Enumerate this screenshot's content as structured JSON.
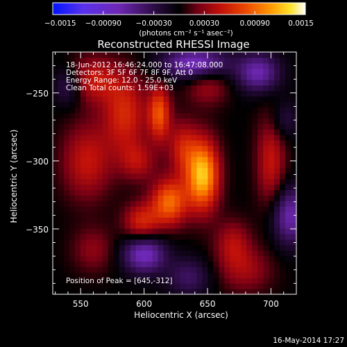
{
  "chart_data": {
    "type": "heatmap",
    "title": "Reconstructed RHESSI Image",
    "xlabel": "Heliocentric X (arcsec)",
    "ylabel": "Heliocentric Y (arcsec)",
    "xlim": [
      528,
      720
    ],
    "ylim": [
      -398,
      -220
    ],
    "x_ticks": [
      550,
      600,
      650,
      700
    ],
    "x_tick_labels": [
      "550",
      "600",
      "650",
      "700"
    ],
    "y_ticks": [
      -250,
      -300,
      -350
    ],
    "y_tick_labels": [
      "−250",
      "−300",
      "−350"
    ],
    "colorbar": {
      "range": [
        -0.0015,
        0.0015
      ],
      "tick_values": [
        -0.0015,
        -0.0009,
        -0.0003,
        0.0003,
        0.0009,
        0.0015
      ],
      "tick_labels": [
        "−0.0015",
        "−0.00090",
        "−0.00030",
        "0.00030",
        "0.00090",
        "0.0015"
      ],
      "unit_label": "(photons cm⁻² s⁻¹ asec⁻²)"
    },
    "annotations": [
      "18-Jun-2012 16:46:24.000 to 16:47:08.000",
      "Detectors: 3F 5F 6F 7F 8F 9F, Att 0",
      "Energy Range: 12.0 - 25.0 keV",
      "Clean    Total counts: 1.59E+03"
    ],
    "peak_label": "Position of Peak = [645,-312]",
    "peak": {
      "x": 645,
      "y": -312,
      "value": 0.0015
    },
    "sources": [
      {
        "x": 646,
        "y": -310,
        "value": 0.00125,
        "sx": 9,
        "sy": 18
      },
      {
        "x": 612,
        "y": -265,
        "value": 0.0008,
        "sx": 6,
        "sy": 14
      },
      {
        "x": 620,
        "y": -330,
        "value": 0.0009,
        "sx": 10,
        "sy": 12
      },
      {
        "x": 555,
        "y": -300,
        "value": 0.0005,
        "sx": 14,
        "sy": 20
      },
      {
        "x": 585,
        "y": -265,
        "value": 0.0006,
        "sx": 12,
        "sy": 20
      },
      {
        "x": 598,
        "y": -345,
        "value": 0.0006,
        "sx": 10,
        "sy": 10
      },
      {
        "x": 700,
        "y": -300,
        "value": 0.0005,
        "sx": 8,
        "sy": 25
      },
      {
        "x": 560,
        "y": -365,
        "value": 0.0003,
        "sx": 12,
        "sy": 12
      },
      {
        "x": 680,
        "y": -380,
        "value": 0.00035,
        "sx": 15,
        "sy": 12
      },
      {
        "x": 670,
        "y": -360,
        "value": 0.0004,
        "sx": 10,
        "sy": 12
      },
      {
        "x": 560,
        "y": -240,
        "value": 0.0005,
        "sx": 14,
        "sy": 12
      },
      {
        "x": 630,
        "y": -290,
        "value": 0.0005,
        "sx": 8,
        "sy": 14
      },
      {
        "x": 595,
        "y": -300,
        "value": 0.0004,
        "sx": 10,
        "sy": 10
      },
      {
        "x": 650,
        "y": -245,
        "value": 0.00035,
        "sx": 12,
        "sy": 10
      },
      {
        "x": 690,
        "y": -235,
        "value": -0.0007,
        "sx": 12,
        "sy": 10
      },
      {
        "x": 640,
        "y": -228,
        "value": -0.0008,
        "sx": 18,
        "sy": 8
      },
      {
        "x": 600,
        "y": -368,
        "value": -0.0008,
        "sx": 12,
        "sy": 10
      },
      {
        "x": 715,
        "y": -340,
        "value": -0.0007,
        "sx": 10,
        "sy": 15
      },
      {
        "x": 540,
        "y": -245,
        "value": -0.0004,
        "sx": 8,
        "sy": 10
      },
      {
        "x": 635,
        "y": -385,
        "value": -0.0004,
        "sx": 12,
        "sy": 10
      },
      {
        "x": 710,
        "y": -270,
        "value": -0.0003,
        "sx": 8,
        "sy": 10
      }
    ]
  },
  "colors": {
    "background": "#000000",
    "axis": "#ffffff",
    "text": "#ffffff"
  },
  "footer": {
    "date": "16-May-2014 17:27"
  }
}
